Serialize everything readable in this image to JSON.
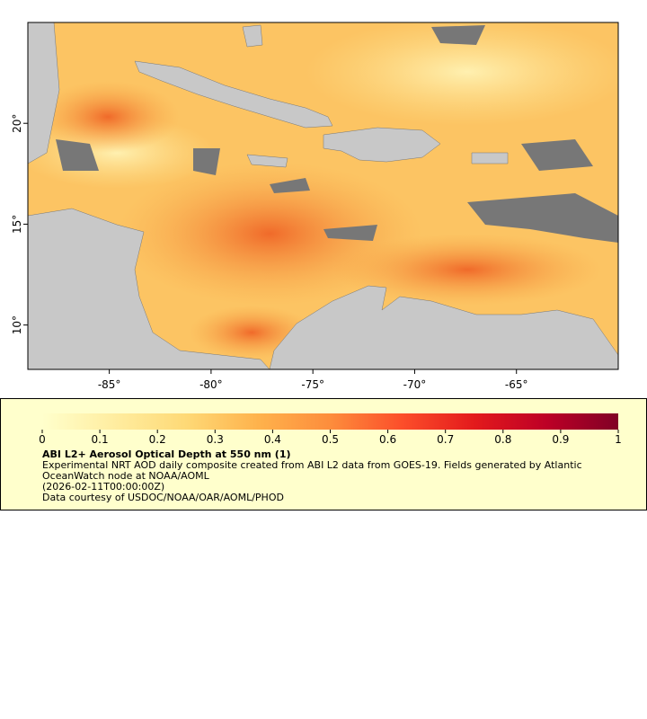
{
  "chart_data": {
    "type": "map",
    "xlim": [
      -89,
      -60
    ],
    "ylim": [
      7.8,
      25
    ],
    "xticks": [
      {
        "value": -85,
        "label": "-85°"
      },
      {
        "value": -80,
        "label": "-80°"
      },
      {
        "value": -75,
        "label": "-75°"
      },
      {
        "value": -70,
        "label": "-70°"
      },
      {
        "value": -65,
        "label": "-65°"
      }
    ],
    "yticks": [
      {
        "value": 10,
        "label": "10°"
      },
      {
        "value": 15,
        "label": "15°"
      },
      {
        "value": 20,
        "label": "20°"
      }
    ],
    "colorbar": {
      "colormap": "YlOrRd",
      "lim": [
        0,
        1
      ],
      "ticks": [
        0,
        0.1,
        0.2,
        0.3,
        0.4,
        0.5,
        0.6,
        0.7,
        0.8,
        0.9,
        1
      ]
    },
    "title": "ABI L2+ Aerosol Optical Depth at 550 nm (1)",
    "description": "Experimental NRT AOD daily composite created from ABI L2 data from GOES-19. Fields generated by Atlantic OceanWatch node at NOAA/AOML",
    "time": "(2026-02-11T00:00:00Z)",
    "credit": "Data courtesy of USDOC/NOAA/OAR/AOML/PHOD"
  }
}
